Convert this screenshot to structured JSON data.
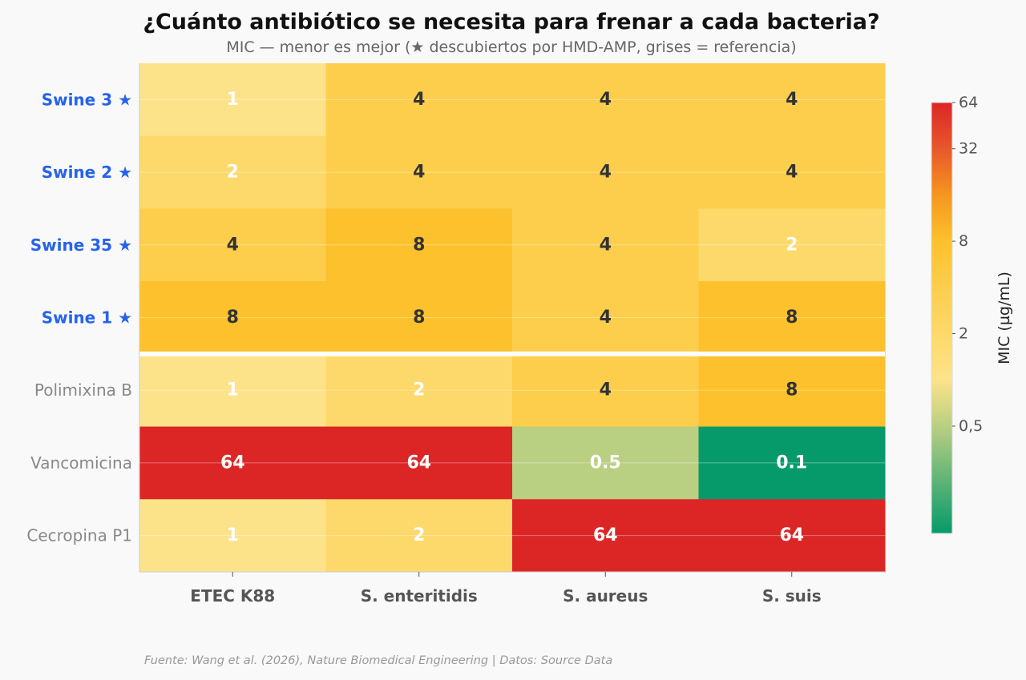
{
  "title": "¿Cuánto antibiótico se necesita para frenar a cada bacteria?",
  "subtitle": "MIC — menor es mejor (★ descubiertos por HMD-AMP, grises = referencia)",
  "source": "Fuente: Wang et al. (2026), Nature Biomedical Engineering | Datos: Source Data",
  "colors": {
    "highlight_label": "#2563eb",
    "reference_label": "#888888",
    "x_label": "#555555",
    "dark_text": "#333333",
    "light_text": "#ffffff",
    "separator": "#ffffff"
  },
  "chart_data": {
    "type": "heatmap",
    "title": "¿Cuánto antibiótico se necesita para frenar a cada bacteria?",
    "subtitle": "MIC — menor es mejor (★ descubiertos por HMD-AMP, grises = referencia)",
    "columns": [
      "ETEC K88",
      "S. enteritidis",
      "S. aureus",
      "S. suis"
    ],
    "rows": [
      {
        "label": "Swine 3 ★",
        "group": "discovered",
        "values": [
          1,
          4,
          4,
          4
        ],
        "display": [
          "1",
          "4",
          "4",
          "4"
        ]
      },
      {
        "label": "Swine 2 ★",
        "group": "discovered",
        "values": [
          2,
          4,
          4,
          4
        ],
        "display": [
          "2",
          "4",
          "4",
          "4"
        ]
      },
      {
        "label": "Swine 35 ★",
        "group": "discovered",
        "values": [
          4,
          8,
          4,
          2
        ],
        "display": [
          "4",
          "8",
          "4",
          "2"
        ]
      },
      {
        "label": "Swine 1 ★",
        "group": "discovered",
        "values": [
          8,
          8,
          4,
          8
        ],
        "display": [
          "8",
          "8",
          "4",
          "8"
        ]
      },
      {
        "label": "Polimixina B",
        "group": "reference",
        "values": [
          1,
          2,
          4,
          8
        ],
        "display": [
          "1",
          "2",
          "4",
          "8"
        ]
      },
      {
        "label": "Vancomicina",
        "group": "reference",
        "values": [
          64,
          64,
          0.5,
          0.1
        ],
        "display": [
          "64",
          "64",
          "0.5",
          "0.1"
        ]
      },
      {
        "label": "Cecropina P1",
        "group": "reference",
        "values": [
          1,
          2,
          64,
          64
        ],
        "display": [
          "1",
          "2",
          "64",
          "64"
        ]
      }
    ],
    "colorbar": {
      "label": "MIC (µg/mL)",
      "scale": "log2",
      "range": [
        0.1,
        64
      ],
      "ticks": [
        {
          "value": 0.5,
          "label": "0,5"
        },
        {
          "value": 2,
          "label": "2"
        },
        {
          "value": 8,
          "label": "8"
        },
        {
          "value": 32,
          "label": "32"
        },
        {
          "value": 64,
          "label": "64"
        }
      ]
    },
    "color_stops": [
      {
        "value": 0.1,
        "color": "#069a6b"
      },
      {
        "value": 0.5,
        "color": "#b9cf82"
      },
      {
        "value": 1,
        "color": "#fce38a"
      },
      {
        "value": 2,
        "color": "#fcd96a"
      },
      {
        "value": 4,
        "color": "#fcce4c"
      },
      {
        "value": 8,
        "color": "#fcc12c"
      },
      {
        "value": 16,
        "color": "#f5961f"
      },
      {
        "value": 32,
        "color": "#e8572b"
      },
      {
        "value": 64,
        "color": "#dc2626"
      }
    ],
    "text_color_rule": {
      "light_text_values": [
        0.1,
        0.5,
        1,
        2,
        64
      ]
    },
    "separator_after_row": 4
  }
}
